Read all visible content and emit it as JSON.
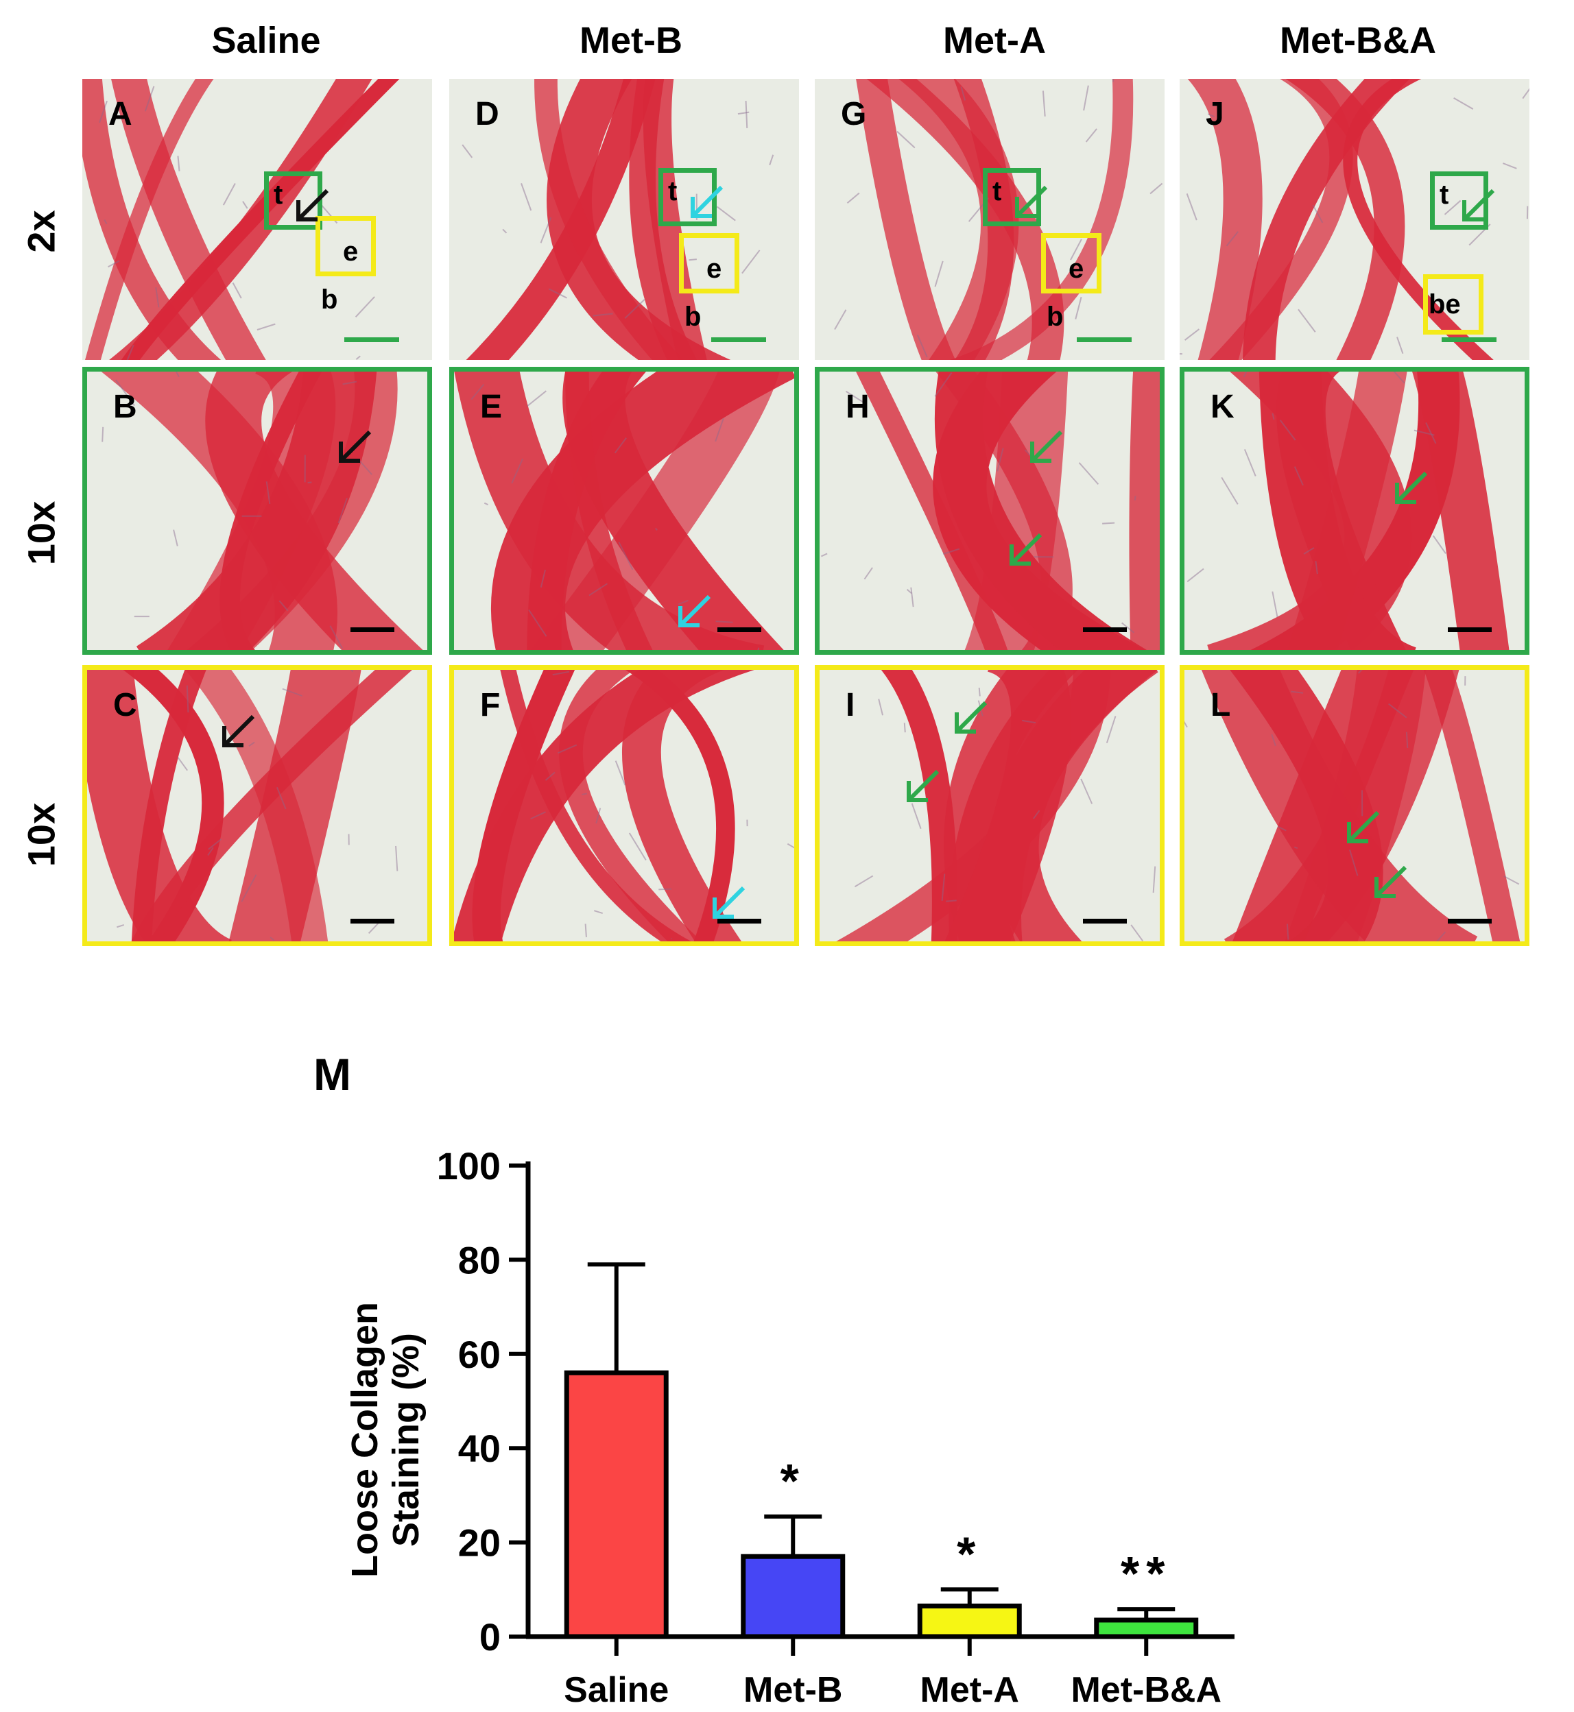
{
  "figure": {
    "columns": [
      "Saline",
      "Met-B",
      "Met-A",
      "Met-B&A"
    ],
    "rows": [
      "2x",
      "10x",
      "10x"
    ],
    "panels": {
      "A": "A",
      "B": "B",
      "C": "C",
      "D": "D",
      "E": "E",
      "F": "F",
      "G": "G",
      "H": "H",
      "I": "I",
      "J": "J",
      "K": "K",
      "L": "L"
    },
    "region_labels": {
      "t": "t",
      "e": "e",
      "b": "b",
      "be": "be"
    },
    "colors": {
      "tissue_red": "#d8283a",
      "background_light": "#e9ece4",
      "tendon_box": "#2ea84a",
      "enthesis_box": "#f4ea19",
      "arrow_black": "#111111",
      "arrow_cyan": "#2fd3e0",
      "arrow_green": "#2ea84a"
    }
  },
  "chart_data": {
    "type": "bar",
    "panel_label": "M",
    "ylabel": "Loose Collagen Staining (%)",
    "ylabel_line1": "Loose Collagen",
    "ylabel_line2": "Staining (%)",
    "ylim": [
      0,
      100
    ],
    "yticks": [
      0,
      20,
      40,
      60,
      80,
      100
    ],
    "categories": [
      "Saline",
      "Met-B",
      "Met-A",
      "Met-B&A"
    ],
    "values": [
      56,
      17,
      6.5,
      3.5
    ],
    "errors": [
      23,
      8.5,
      3.5,
      2.3
    ],
    "significance": [
      "",
      "*",
      "*",
      "**"
    ],
    "bar_colors": [
      "#fb4545",
      "#4646f5",
      "#f6f614",
      "#3ee43e"
    ],
    "grid": false
  }
}
